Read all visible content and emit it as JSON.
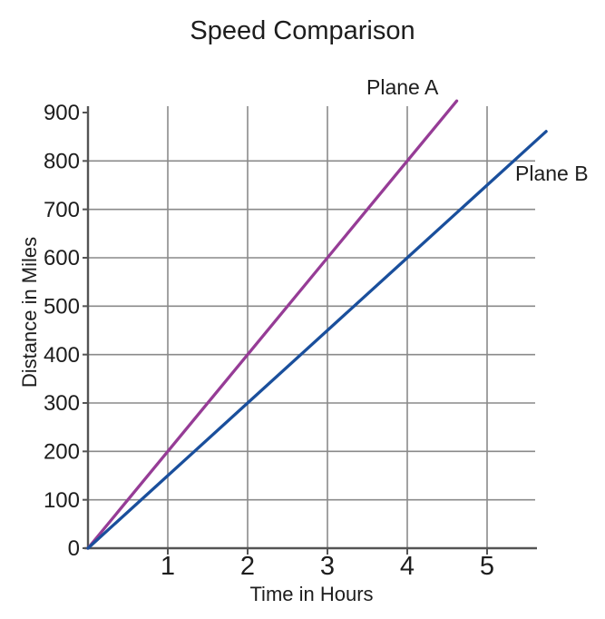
{
  "chart_data": {
    "type": "line",
    "title": "Speed Comparison",
    "xlabel": "Time in Hours",
    "ylabel": "Distance in Miles",
    "xlim": [
      0,
      5.6
    ],
    "ylim": [
      0,
      900
    ],
    "x_ticks": [
      1,
      2,
      3,
      4,
      5
    ],
    "y_ticks": [
      0,
      100,
      200,
      300,
      400,
      500,
      600,
      700,
      800,
      900
    ],
    "grid": true,
    "legend_position": "inline line-end annotations",
    "series": [
      {
        "name": "Plane A",
        "color": "#963c96",
        "x": [
          0,
          1,
          2,
          3,
          4,
          4.62
        ],
        "y": [
          0,
          200,
          400,
          600,
          800,
          924
        ]
      },
      {
        "name": "Plane B",
        "color": "#1a4f9c",
        "x": [
          0,
          1,
          2,
          3,
          4,
          5,
          5.74
        ],
        "y": [
          0,
          150,
          300,
          450,
          600,
          750,
          861
        ]
      }
    ],
    "colors": {
      "background": "#ffffff",
      "grid": "#8a8a8a",
      "axis": "#545454",
      "text": "#1d1d1d"
    }
  }
}
